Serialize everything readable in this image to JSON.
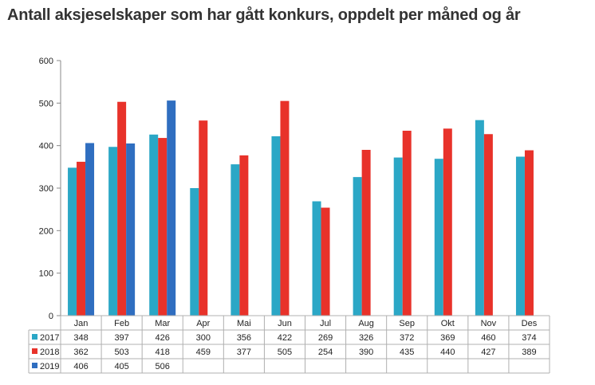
{
  "title": "Antall aksjeselskaper som har gått konkurs, oppdelt per måned og år",
  "chart_data": {
    "type": "bar",
    "categories": [
      "Jan",
      "Feb",
      "Mar",
      "Apr",
      "Mai",
      "Jun",
      "Jul",
      "Aug",
      "Sep",
      "Okt",
      "Nov",
      "Des"
    ],
    "series": [
      {
        "name": "2017",
        "color": "#2BA7C6",
        "values": [
          348,
          397,
          426,
          300,
          356,
          422,
          269,
          326,
          372,
          369,
          460,
          374
        ]
      },
      {
        "name": "2018",
        "color": "#E8322A",
        "values": [
          362,
          503,
          418,
          459,
          377,
          505,
          254,
          390,
          435,
          440,
          427,
          389
        ]
      },
      {
        "name": "2019",
        "color": "#2F6EC0",
        "values": [
          406,
          405,
          506,
          null,
          null,
          null,
          null,
          null,
          null,
          null,
          null,
          null
        ]
      }
    ],
    "ylim": [
      0,
      600
    ],
    "yticks": [
      0,
      100,
      200,
      300,
      400,
      500,
      600
    ],
    "grid": false,
    "legend": "data-table",
    "data_table": true
  }
}
